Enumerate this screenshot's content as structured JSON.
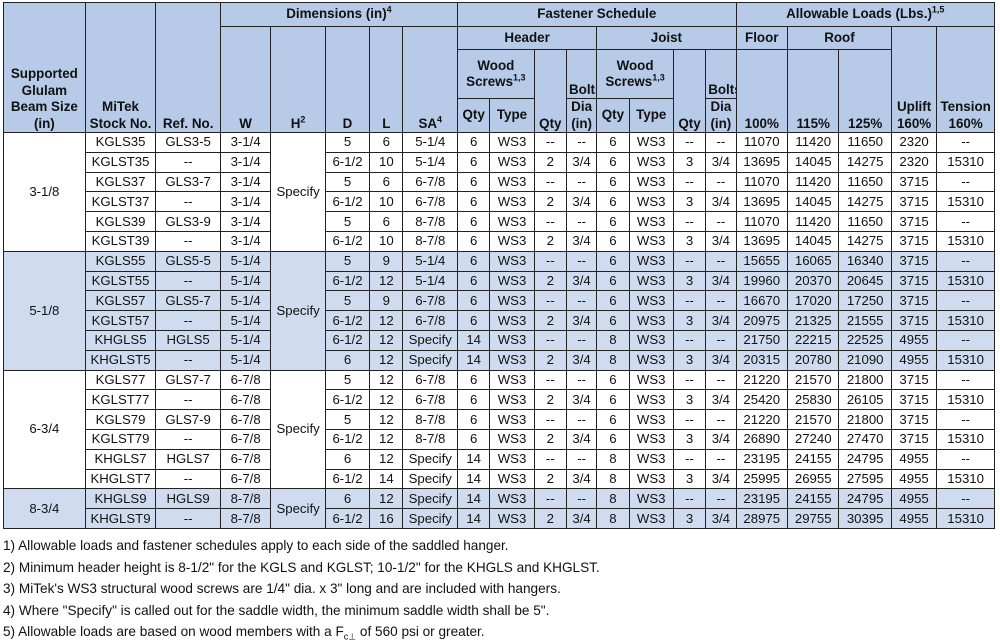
{
  "header": {
    "size_col": "Supported Glulam Beam Size (in)",
    "stock_col": "MiTek Stock No.",
    "ref_col": "Ref. No.",
    "dimensions": "Dimensions (in)",
    "dimensions_sup": "4",
    "fastener_schedule": "Fastener Schedule",
    "allowable_loads": "Allowable Loads (Lbs.)",
    "allowable_loads_sup": "1,5",
    "header_group": "Header",
    "joist_group": "Joist",
    "wood_screws": "Wood Screws",
    "wood_screws_sup": "1,3",
    "bolts": "Bolts",
    "floor": "Floor",
    "roof": "Roof",
    "uplift": "Uplift 160%",
    "tension": "Tension 160%",
    "w": "W",
    "h": "H",
    "h_sup": "2",
    "d": "D",
    "l": "L",
    "sa": "SA",
    "sa_sup": "4",
    "qty": "Qty",
    "type": "Type",
    "dia": "Dia (in)",
    "p100": "100%",
    "p115": "115%",
    "p125": "125%"
  },
  "groups": [
    {
      "size": "3-1/8",
      "h": "Specify",
      "rows": [
        [
          "KGLS35",
          "GLS3-5",
          "3-1/4",
          "5",
          "6",
          "5-1/4",
          "6",
          "WS3",
          "--",
          "--",
          "6",
          "WS3",
          "--",
          "--",
          "11070",
          "11420",
          "11650",
          "2320",
          "--"
        ],
        [
          "KGLST35",
          "--",
          "3-1/4",
          "6-1/2",
          "10",
          "5-1/4",
          "6",
          "WS3",
          "2",
          "3/4",
          "6",
          "WS3",
          "3",
          "3/4",
          "13695",
          "14045",
          "14275",
          "2320",
          "15310"
        ],
        [
          "KGLS37",
          "GLS3-7",
          "3-1/4",
          "5",
          "6",
          "6-7/8",
          "6",
          "WS3",
          "--",
          "--",
          "6",
          "WS3",
          "--",
          "--",
          "11070",
          "11420",
          "11650",
          "3715",
          "--"
        ],
        [
          "KGLST37",
          "--",
          "3-1/4",
          "6-1/2",
          "10",
          "6-7/8",
          "6",
          "WS3",
          "2",
          "3/4",
          "6",
          "WS3",
          "3",
          "3/4",
          "13695",
          "14045",
          "14275",
          "3715",
          "15310"
        ],
        [
          "KGLS39",
          "GLS3-9",
          "3-1/4",
          "5",
          "6",
          "8-7/8",
          "6",
          "WS3",
          "--",
          "--",
          "6",
          "WS3",
          "--",
          "--",
          "11070",
          "11420",
          "11650",
          "3715",
          "--"
        ],
        [
          "KGLST39",
          "--",
          "3-1/4",
          "6-1/2",
          "10",
          "8-7/8",
          "6",
          "WS3",
          "2",
          "3/4",
          "6",
          "WS3",
          "3",
          "3/4",
          "13695",
          "14045",
          "14275",
          "3715",
          "15310"
        ]
      ]
    },
    {
      "size": "5-1/8",
      "h": "Specify",
      "rows": [
        [
          "KGLS55",
          "GLS5-5",
          "5-1/4",
          "5",
          "9",
          "5-1/4",
          "6",
          "WS3",
          "--",
          "--",
          "6",
          "WS3",
          "--",
          "--",
          "15655",
          "16065",
          "16340",
          "3715",
          "--"
        ],
        [
          "KGLST55",
          "--",
          "5-1/4",
          "6-1/2",
          "12",
          "5-1/4",
          "6",
          "WS3",
          "2",
          "3/4",
          "6",
          "WS3",
          "3",
          "3/4",
          "19960",
          "20370",
          "20645",
          "3715",
          "15310"
        ],
        [
          "KGLS57",
          "GLS5-7",
          "5-1/4",
          "5",
          "9",
          "6-7/8",
          "6",
          "WS3",
          "--",
          "--",
          "6",
          "WS3",
          "--",
          "--",
          "16670",
          "17020",
          "17250",
          "3715",
          "--"
        ],
        [
          "KGLST57",
          "--",
          "5-1/4",
          "6-1/2",
          "12",
          "6-7/8",
          "6",
          "WS3",
          "2",
          "3/4",
          "6",
          "WS3",
          "3",
          "3/4",
          "20975",
          "21325",
          "21555",
          "3715",
          "15310"
        ],
        [
          "KHGLS5",
          "HGLS5",
          "5-1/4",
          "6-1/2",
          "12",
          "Specify",
          "14",
          "WS3",
          "--",
          "--",
          "8",
          "WS3",
          "--",
          "--",
          "21750",
          "22215",
          "22525",
          "4955",
          "--"
        ],
        [
          "KHGLST5",
          "--",
          "5-1/4",
          "6",
          "12",
          "Specify",
          "14",
          "WS3",
          "2",
          "3/4",
          "8",
          "WS3",
          "3",
          "3/4",
          "20315",
          "20780",
          "21090",
          "4955",
          "15310"
        ]
      ]
    },
    {
      "size": "6-3/4",
      "h": "Specify",
      "rows": [
        [
          "KGLS77",
          "GLS7-7",
          "6-7/8",
          "5",
          "12",
          "6-7/8",
          "6",
          "WS3",
          "--",
          "--",
          "6",
          "WS3",
          "--",
          "--",
          "21220",
          "21570",
          "21800",
          "3715",
          "--"
        ],
        [
          "KGLST77",
          "--",
          "6-7/8",
          "6-1/2",
          "12",
          "6-7/8",
          "6",
          "WS3",
          "2",
          "3/4",
          "6",
          "WS3",
          "3",
          "3/4",
          "25420",
          "25830",
          "26105",
          "3715",
          "15310"
        ],
        [
          "KGLS79",
          "GLS7-9",
          "6-7/8",
          "5",
          "12",
          "8-7/8",
          "6",
          "WS3",
          "--",
          "--",
          "6",
          "WS3",
          "--",
          "--",
          "21220",
          "21570",
          "21800",
          "3715",
          "--"
        ],
        [
          "KGLST79",
          "--",
          "6-7/8",
          "6-1/2",
          "12",
          "8-7/8",
          "6",
          "WS3",
          "2",
          "3/4",
          "6",
          "WS3",
          "3",
          "3/4",
          "26890",
          "27240",
          "27470",
          "3715",
          "15310"
        ],
        [
          "KHGLS7",
          "HGLS7",
          "6-7/8",
          "6",
          "12",
          "Specify",
          "14",
          "WS3",
          "--",
          "--",
          "8",
          "WS3",
          "--",
          "--",
          "23195",
          "24155",
          "24795",
          "4955",
          "--"
        ],
        [
          "KHGLST7",
          "--",
          "6-7/8",
          "6-1/2",
          "14",
          "Specify",
          "14",
          "WS3",
          "2",
          "3/4",
          "8",
          "WS3",
          "3",
          "3/4",
          "25995",
          "26955",
          "27595",
          "4955",
          "15310"
        ]
      ]
    },
    {
      "size": "8-3/4",
      "h": "Specify",
      "rows": [
        [
          "KHGLS9",
          "HGLS9",
          "8-7/8",
          "6",
          "12",
          "Specify",
          "14",
          "WS3",
          "--",
          "--",
          "8",
          "WS3",
          "--",
          "--",
          "23195",
          "24155",
          "24795",
          "4955",
          "--"
        ],
        [
          "KHGLST9",
          "--",
          "8-7/8",
          "6-1/2",
          "16",
          "Specify",
          "14",
          "WS3",
          "2",
          "3/4",
          "8",
          "WS3",
          "3",
          "3/4",
          "28975",
          "29755",
          "30395",
          "4955",
          "15310"
        ]
      ]
    }
  ],
  "notes": {
    "n1": "1) Allowable loads and fastener schedules apply to each side of the saddled hanger.",
    "n2": "2) Minimum header height is 8-1/2\" for the KGLS and KGLST; 10-1/2\" for the KHGLS and KHGLST.",
    "n3": "3) MiTek's WS3 structural wood screws are 1/4\" dia. x 3\" long and are included with hangers.",
    "n4": "4) Where \"Specify\" is called out for the saddle width, the minimum saddle width shall be 5\".",
    "n5_a": "5) Allowable loads are based on wood members with a F",
    "n5_sub": "c⊥",
    "n5_b": " of 560 psi or greater."
  }
}
